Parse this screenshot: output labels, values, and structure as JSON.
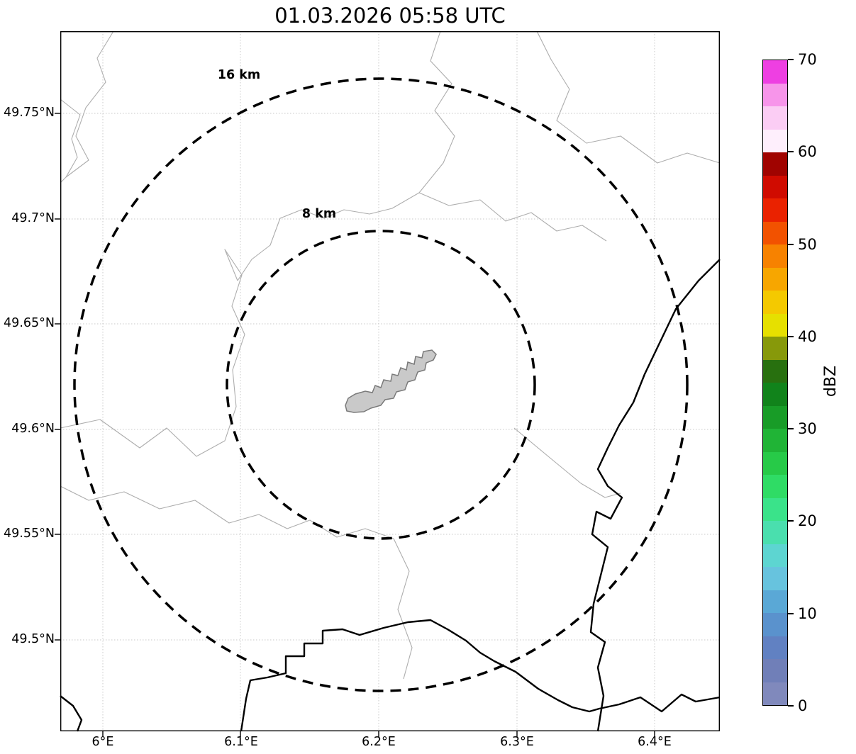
{
  "title": "01.03.2026 05:58 UTC",
  "map": {
    "ring_labels": {
      "outer": "16 km",
      "inner": "8 km"
    },
    "x_ticks": [
      "6°E",
      "6.1°E",
      "6.2°E",
      "6.3°E",
      "6.4°E"
    ],
    "y_ticks": [
      "49.75°N",
      "49.7°N",
      "49.65°N",
      "49.6°N",
      "49.55°N",
      "49.5°N"
    ],
    "features": {
      "thin_gray_lines": "administrative boundaries",
      "thick_black_lines": "country borders / river",
      "gray_polygon": "airport area at ring center"
    }
  },
  "colorbar": {
    "label": "dBZ",
    "min": 0,
    "max": 70,
    "ticks": [
      {
        "value": 70,
        "label": "70"
      },
      {
        "value": 60,
        "label": "60"
      },
      {
        "value": 50,
        "label": "50"
      },
      {
        "value": 40,
        "label": "40"
      },
      {
        "value": 30,
        "label": "30"
      },
      {
        "value": 20,
        "label": "20"
      },
      {
        "value": 10,
        "label": "10"
      },
      {
        "value": 0,
        "label": "0"
      }
    ],
    "segments": [
      {
        "dbz": [
          0,
          2.5
        ],
        "color": "#8089bc"
      },
      {
        "dbz": [
          2.5,
          5
        ],
        "color": "#707fb8"
      },
      {
        "dbz": [
          5,
          7.5
        ],
        "color": "#6181c2"
      },
      {
        "dbz": [
          7.5,
          10
        ],
        "color": "#5a92cd"
      },
      {
        "dbz": [
          10,
          12.5
        ],
        "color": "#5aa8d6"
      },
      {
        "dbz": [
          12.5,
          15
        ],
        "color": "#67c3de"
      },
      {
        "dbz": [
          15,
          17.5
        ],
        "color": "#5dd5d1"
      },
      {
        "dbz": [
          17.5,
          20
        ],
        "color": "#4adfae"
      },
      {
        "dbz": [
          20,
          22.5
        ],
        "color": "#3ae38a"
      },
      {
        "dbz": [
          22.5,
          25
        ],
        "color": "#2fdc65"
      },
      {
        "dbz": [
          25,
          27.5
        ],
        "color": "#27ca48"
      },
      {
        "dbz": [
          27.5,
          30
        ],
        "color": "#20b436"
      },
      {
        "dbz": [
          30,
          32.5
        ],
        "color": "#189c27"
      },
      {
        "dbz": [
          32.5,
          35
        ],
        "color": "#11831b"
      },
      {
        "dbz": [
          35,
          37.5
        ],
        "color": "#28700f"
      },
      {
        "dbz": [
          37.5,
          40
        ],
        "color": "#87990a"
      },
      {
        "dbz": [
          40,
          42.5
        ],
        "color": "#e6e000"
      },
      {
        "dbz": [
          42.5,
          45
        ],
        "color": "#f4c900"
      },
      {
        "dbz": [
          45,
          47.5
        ],
        "color": "#f7a600"
      },
      {
        "dbz": [
          47.5,
          50
        ],
        "color": "#f78200"
      },
      {
        "dbz": [
          50,
          52.5
        ],
        "color": "#f25200"
      },
      {
        "dbz": [
          52.5,
          55
        ],
        "color": "#ea2200"
      },
      {
        "dbz": [
          55,
          57.5
        ],
        "color": "#d00b00"
      },
      {
        "dbz": [
          57.5,
          60
        ],
        "color": "#a00300"
      },
      {
        "dbz": [
          60,
          62.5
        ],
        "color": "#feeffc"
      },
      {
        "dbz": [
          62.5,
          65
        ],
        "color": "#fbcdf4"
      },
      {
        "dbz": [
          65,
          67.5
        ],
        "color": "#f795ea"
      },
      {
        "dbz": [
          67.5,
          70
        ],
        "color": "#ee3fe2"
      }
    ]
  },
  "chart_data": {
    "type": "map",
    "title": "01.03.2026 05:58 UTC",
    "description": "Weather radar range-ring map centered near 6.21°E / 49.62°N; no precipitation echoes visible",
    "x_axis": {
      "tick_labels": [
        "6°E",
        "6.1°E",
        "6.2°E",
        "6.3°E",
        "6.4°E"
      ],
      "approx_range_deg_e": [
        5.97,
        6.45
      ]
    },
    "y_axis": {
      "tick_labels": [
        "49.75°N",
        "49.7°N",
        "49.65°N",
        "49.6°N",
        "49.55°N",
        "49.5°N"
      ],
      "approx_range_deg_n": [
        49.46,
        49.79
      ]
    },
    "range_rings": [
      {
        "radius_km": 8,
        "label": "8 km"
      },
      {
        "radius_km": 16,
        "label": "16 km"
      }
    ],
    "ring_center_approx": {
      "lon_deg_e": 6.21,
      "lat_deg_n": 49.62
    },
    "colorbar": {
      "label": "dBZ",
      "min": 0,
      "max": 70,
      "tick_values": [
        0,
        10,
        20,
        30,
        40,
        50,
        60,
        70
      ],
      "step_dbz": 2.5
    },
    "grid": true,
    "legend_position": "right colorbar"
  }
}
